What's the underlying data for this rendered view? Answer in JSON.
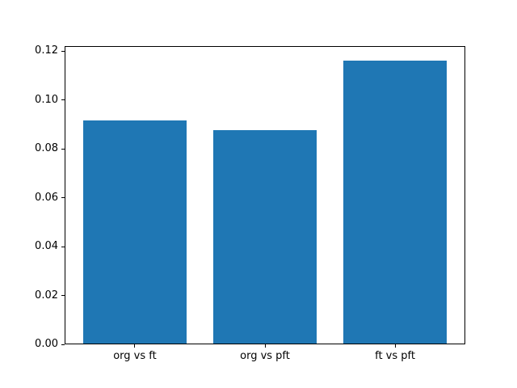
{
  "figure": {
    "background": "#ffffff",
    "title": ""
  },
  "chart_data": {
    "type": "bar",
    "categories": [
      "org vs ft",
      "org vs pft",
      "ft vs pft"
    ],
    "values": [
      0.0915,
      0.0878,
      0.1163
    ],
    "title": "",
    "xlabel": "",
    "ylabel": "",
    "ylim": [
      0,
      0.1221
    ],
    "xlim": [
      -0.54,
      2.54
    ],
    "yticks": [
      0.0,
      0.02,
      0.04,
      0.06,
      0.08,
      0.1,
      0.12
    ],
    "ytick_labels": [
      "0.00",
      "0.02",
      "0.04",
      "0.06",
      "0.08",
      "0.10",
      "0.12"
    ],
    "bar_color": "#1f77b4",
    "bar_width": 0.8,
    "grid": false,
    "legend": null,
    "spine_color": "#000000"
  }
}
